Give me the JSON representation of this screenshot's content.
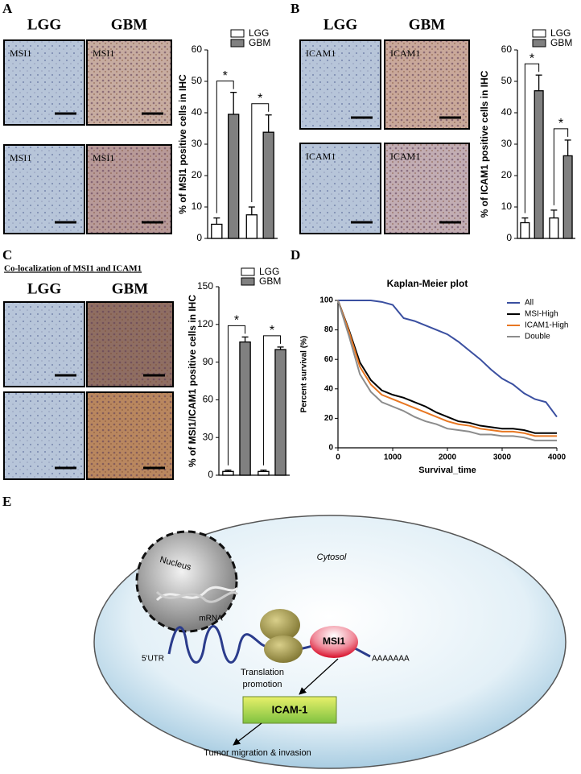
{
  "panel_labels": [
    "A",
    "B",
    "C",
    "D",
    "E"
  ],
  "micrographs": [
    {
      "headers": [
        "LGG",
        "GBM"
      ],
      "labels": [
        "MSI1",
        "MSI1",
        "MSI1",
        "MSI1"
      ]
    },
    {
      "headers": [
        "LGG",
        "GBM"
      ],
      "labels": [
        "ICAM1",
        "ICAM1",
        "ICAM1",
        "ICAM1"
      ]
    },
    {
      "title": "Co-localization of MSI1 and ICAM1",
      "headers": [
        "LGG",
        "GBM"
      ]
    }
  ],
  "chart_data": [
    {
      "type": "bar",
      "ylabel": "% of MSI1 positive cells in IHC",
      "categories": [
        null,
        null
      ],
      "series": [
        {
          "name": "LGG",
          "color": "#ffffff",
          "values": [
            4.5,
            7.5
          ],
          "errors": [
            2,
            2.5
          ]
        },
        {
          "name": "GBM",
          "color": "#808080",
          "values": [
            39.5,
            33.8
          ],
          "errors": [
            7,
            5.5
          ]
        }
      ],
      "annotations": [
        "*",
        "*"
      ],
      "ylim": [
        0,
        60
      ],
      "yticks": [
        0,
        10,
        20,
        30,
        40,
        50,
        60
      ],
      "legend": "top"
    },
    {
      "type": "bar",
      "ylabel": "% of ICAM1 positive cells in IHC",
      "categories": [
        null,
        null
      ],
      "series": [
        {
          "name": "LGG",
          "color": "#ffffff",
          "values": [
            5,
            6.5
          ],
          "errors": [
            1.5,
            2.5
          ]
        },
        {
          "name": "GBM",
          "color": "#808080",
          "values": [
            47,
            26.3
          ],
          "errors": [
            5,
            5
          ]
        }
      ],
      "annotations": [
        "*",
        "*"
      ],
      "ylim": [
        0,
        60
      ],
      "yticks": [
        0,
        10,
        20,
        30,
        40,
        50,
        60
      ],
      "legend": "top"
    },
    {
      "type": "bar",
      "ylabel": "% of MSI1/ICAM1 positive cells in IHC",
      "categories": [
        null,
        null
      ],
      "series": [
        {
          "name": "LGG",
          "color": "#ffffff",
          "values": [
            3,
            3
          ],
          "errors": [
            1,
            1
          ]
        },
        {
          "name": "GBM",
          "color": "#808080",
          "values": [
            106,
            100
          ],
          "errors": [
            4,
            2
          ]
        }
      ],
      "annotations": [
        "*",
        "*"
      ],
      "ylim": [
        0,
        150
      ],
      "yticks": [
        0,
        30,
        60,
        90,
        120,
        150
      ],
      "legend": "top"
    },
    {
      "type": "line",
      "title": "Kaplan-Meier plot",
      "xlabel": "Survival_time",
      "ylabel": "Percent survival (%)",
      "x": [
        0,
        200,
        400,
        600,
        800,
        1000,
        1200,
        1400,
        1600,
        1800,
        2000,
        2200,
        2400,
        2600,
        2800,
        3000,
        3200,
        3400,
        3600,
        3800,
        4000
      ],
      "series": [
        {
          "name": "All",
          "color": "#3a4fa0",
          "values": [
            100,
            100,
            100,
            100,
            99,
            97,
            88,
            86,
            83,
            80,
            77,
            72,
            66,
            60,
            53,
            47,
            43,
            37,
            33,
            31,
            21
          ]
        },
        {
          "name": "MSI-High",
          "color": "#000000",
          "values": [
            100,
            80,
            58,
            46,
            39,
            36,
            34,
            31,
            28,
            24,
            21,
            18,
            17,
            15,
            14,
            13,
            13,
            12,
            10,
            10,
            10
          ]
        },
        {
          "name": "ICAM1-High",
          "color": "#e87722",
          "values": [
            100,
            79,
            55,
            43,
            36,
            33,
            30,
            27,
            24,
            21,
            18,
            16,
            15,
            13,
            12,
            11,
            11,
            10,
            8,
            8,
            8
          ]
        },
        {
          "name": "Double",
          "color": "#8c8c8c",
          "values": [
            100,
            76,
            50,
            38,
            31,
            28,
            25,
            21,
            18,
            16,
            13,
            12,
            11,
            9,
            9,
            8,
            8,
            7,
            5,
            5,
            5
          ]
        }
      ],
      "xlim": [
        0,
        4000
      ],
      "xticks": [
        0,
        1000,
        2000,
        3000,
        4000
      ],
      "ylim": [
        0,
        100
      ],
      "yticks": [
        0,
        20,
        40,
        60,
        80,
        100
      ],
      "legend": "upper right"
    }
  ],
  "diagram": {
    "cytosol": "Cytosol",
    "nucleus": "Nucleus",
    "mrna": "mRNA",
    "utr": "5'UTR",
    "polya": "AAAAAAA",
    "msi1": "MSI1",
    "translation": [
      "Translation",
      "promotion"
    ],
    "icam1": "ICAM-1",
    "outcome": "Tumor migration & invasion"
  }
}
